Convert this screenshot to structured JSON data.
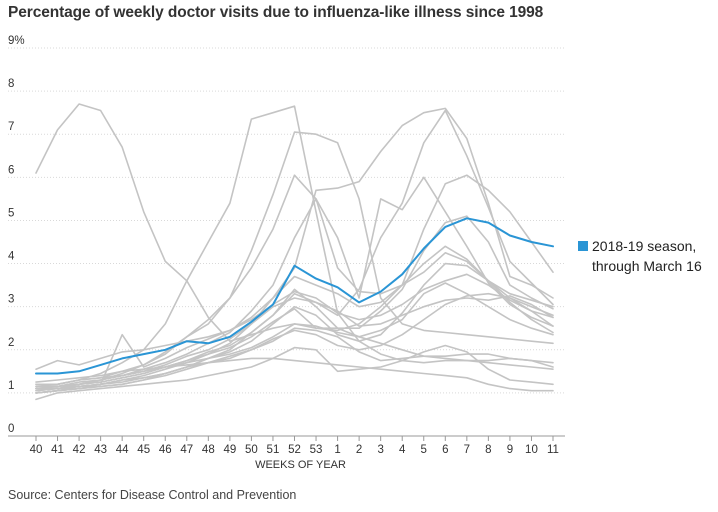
{
  "title": "Percentage of weekly doctor visits due to influenza-like illness since 1998",
  "source": "Source: Centers for Disease Control and Prevention",
  "legend": {
    "line1": "2018-19 season,",
    "line2": "through March 16"
  },
  "colors": {
    "highlight": "#2a95d5",
    "background_series": "#c4c4c4",
    "grid": "#d9d9d9"
  },
  "chart_data": {
    "type": "line",
    "title": "Percentage of weekly doctor visits due to influenza-like illness since 1998",
    "xlabel": "WEEKS OF YEAR",
    "ylabel": "",
    "categories": [
      "40",
      "41",
      "42",
      "43",
      "44",
      "45",
      "46",
      "47",
      "48",
      "49",
      "50",
      "51",
      "52",
      "53",
      "1",
      "2",
      "3",
      "4",
      "5",
      "6",
      "7",
      "8",
      "9",
      "10",
      "11"
    ],
    "y_ticks": [
      "0",
      "1",
      "2",
      "3",
      "4",
      "5",
      "6",
      "7",
      "8",
      "9%"
    ],
    "ylim": [
      0,
      9
    ],
    "grid": true,
    "legend_position": "right",
    "highlight": {
      "name": "2018-19 season, through March 16",
      "values": [
        1.45,
        1.45,
        1.5,
        1.65,
        1.8,
        1.9,
        2.0,
        2.2,
        2.15,
        2.3,
        2.65,
        3.05,
        3.95,
        3.65,
        3.45,
        3.1,
        3.35,
        3.75,
        4.35,
        4.85,
        5.05,
        4.95,
        4.65,
        4.5,
        4.4
      ]
    },
    "background_series": [
      {
        "values": [
          6.1,
          7.1,
          7.7,
          7.55,
          6.7,
          5.2,
          4.05,
          3.6,
          2.75,
          2.2,
          2.35,
          2.5,
          2.6,
          2.5,
          2.5,
          2.3,
          2.15,
          2.0,
          1.85,
          1.8,
          1.75,
          1.75,
          1.8,
          1.75,
          1.7
        ]
      },
      {
        "values": [
          1.2,
          1.2,
          1.3,
          1.45,
          1.7,
          2.0,
          2.6,
          3.6,
          4.5,
          5.4,
          7.35,
          7.5,
          7.65,
          5.2,
          2.85,
          2.2,
          1.9,
          1.75,
          1.7,
          1.75,
          1.75,
          1.7,
          1.65,
          1.6,
          1.55
        ]
      },
      {
        "values": [
          1.1,
          1.15,
          1.2,
          1.3,
          1.45,
          1.65,
          1.95,
          2.3,
          2.7,
          3.2,
          4.3,
          5.6,
          7.05,
          7.0,
          6.8,
          5.5,
          3.2,
          2.6,
          2.45,
          2.4,
          2.35,
          2.3,
          2.25,
          2.2,
          2.15
        ]
      },
      {
        "values": [
          1.05,
          1.1,
          1.2,
          1.25,
          1.35,
          1.45,
          1.6,
          1.75,
          1.9,
          2.15,
          2.6,
          3.2,
          3.9,
          5.7,
          5.75,
          5.9,
          6.6,
          7.2,
          7.5,
          7.6,
          6.9,
          5.4,
          3.7,
          3.5,
          3.2
        ]
      },
      {
        "values": [
          1.0,
          1.05,
          1.1,
          1.15,
          1.2,
          1.3,
          1.45,
          1.6,
          1.8,
          2.0,
          2.4,
          2.8,
          3.3,
          3.1,
          2.8,
          3.4,
          4.6,
          5.4,
          6.8,
          7.55,
          6.5,
          5.3,
          4.05,
          3.55,
          3.05
        ]
      },
      {
        "values": [
          1.2,
          1.2,
          1.3,
          1.35,
          1.5,
          1.65,
          1.9,
          2.3,
          2.6,
          3.2,
          3.9,
          4.8,
          6.05,
          5.5,
          3.9,
          3.35,
          3.3,
          3.5,
          3.8,
          4.25,
          4.05,
          3.6,
          3.2,
          3.0,
          2.8
        ]
      },
      {
        "values": [
          1.1,
          1.15,
          1.2,
          1.3,
          1.4,
          1.55,
          1.7,
          1.9,
          2.15,
          2.4,
          2.9,
          3.5,
          4.6,
          5.5,
          4.6,
          3.2,
          5.5,
          5.25,
          6.0,
          5.2,
          4.4,
          3.55,
          3.05,
          2.75,
          2.55
        ]
      },
      {
        "values": [
          1.0,
          1.05,
          1.15,
          1.2,
          1.3,
          1.4,
          1.55,
          1.7,
          1.9,
          2.05,
          2.3,
          2.65,
          2.95,
          2.5,
          2.45,
          2.6,
          3.0,
          3.5,
          4.8,
          5.85,
          6.05,
          5.7,
          5.2,
          4.5,
          3.8
        ]
      },
      {
        "values": [
          1.1,
          1.1,
          1.2,
          1.25,
          1.35,
          1.45,
          1.6,
          1.75,
          1.95,
          2.1,
          2.4,
          2.8,
          3.4,
          3.0,
          2.5,
          2.5,
          2.9,
          3.4,
          4.3,
          4.95,
          5.1,
          4.5,
          3.5,
          3.2,
          2.95
        ]
      },
      {
        "values": [
          1.05,
          1.1,
          1.15,
          1.2,
          1.25,
          1.35,
          1.45,
          1.6,
          1.8,
          1.95,
          2.2,
          2.6,
          3.0,
          2.8,
          2.35,
          2.2,
          2.35,
          2.85,
          3.5,
          4.0,
          3.95,
          3.6,
          3.1,
          2.7,
          2.4
        ]
      },
      {
        "values": [
          1.15,
          1.15,
          1.25,
          1.3,
          1.4,
          1.5,
          1.65,
          1.85,
          2.0,
          2.25,
          2.6,
          3.0,
          3.2,
          3.1,
          2.9,
          2.55,
          2.6,
          2.8,
          3.0,
          3.15,
          3.2,
          3.15,
          3.25,
          3.05,
          2.75
        ]
      },
      {
        "values": [
          1.0,
          1.05,
          1.1,
          1.15,
          1.2,
          1.3,
          1.4,
          1.55,
          1.7,
          1.8,
          2.0,
          2.25,
          2.45,
          2.35,
          2.1,
          2.0,
          2.1,
          2.35,
          2.7,
          3.05,
          3.25,
          3.3,
          3.2,
          2.9,
          2.55
        ]
      },
      {
        "values": [
          1.1,
          1.1,
          1.15,
          1.2,
          1.3,
          1.35,
          1.45,
          1.6,
          1.7,
          1.85,
          2.0,
          2.2,
          2.5,
          2.45,
          2.3,
          1.95,
          1.75,
          1.8,
          1.85,
          1.85,
          1.9,
          1.9,
          1.8,
          1.75,
          1.6
        ]
      },
      {
        "values": [
          0.85,
          1.0,
          1.05,
          1.1,
          1.15,
          1.2,
          1.25,
          1.3,
          1.4,
          1.5,
          1.6,
          1.8,
          2.05,
          2.0,
          1.5,
          1.55,
          1.6,
          1.75,
          1.95,
          2.1,
          1.95,
          1.55,
          1.3,
          1.25,
          1.2
        ]
      },
      {
        "values": [
          1.25,
          1.3,
          1.35,
          1.4,
          1.5,
          1.55,
          1.6,
          1.65,
          1.7,
          1.75,
          1.8,
          1.8,
          1.75,
          1.7,
          1.65,
          1.6,
          1.55,
          1.5,
          1.45,
          1.4,
          1.35,
          1.2,
          1.1,
          1.05,
          1.05
        ]
      },
      {
        "values": [
          1.15,
          1.2,
          1.3,
          1.35,
          1.4,
          1.5,
          1.6,
          1.7,
          1.8,
          1.9,
          2.05,
          2.3,
          2.6,
          2.55,
          2.4,
          2.3,
          2.45,
          2.7,
          3.3,
          3.55,
          3.3,
          3.0,
          2.7,
          2.5,
          2.35
        ]
      },
      {
        "values": [
          1.55,
          1.75,
          1.65,
          1.8,
          1.95,
          2.0,
          2.1,
          2.2,
          2.3,
          2.45,
          2.75,
          3.2,
          3.7,
          3.5,
          3.3,
          3.0,
          3.1,
          3.5,
          4.0,
          4.4,
          4.1,
          3.6,
          3.3,
          3.15,
          3.0
        ]
      },
      {
        "values": [
          1.0,
          1.05,
          1.1,
          1.2,
          2.35,
          1.6,
          1.8,
          2.05,
          2.25,
          2.45,
          2.7,
          3.05,
          3.35,
          3.2,
          2.85,
          2.7,
          2.8,
          3.05,
          3.4,
          3.6,
          3.75,
          3.5,
          3.15,
          2.9,
          2.75
        ]
      }
    ]
  }
}
